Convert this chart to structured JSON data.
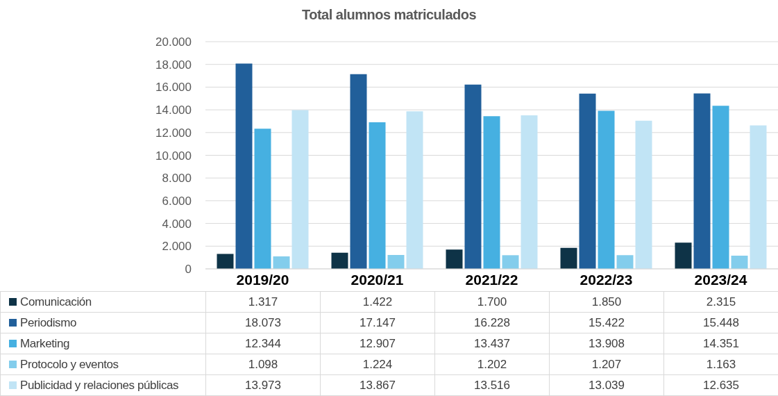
{
  "chart_data": {
    "type": "bar",
    "title": "Total alumnos matriculados",
    "categories": [
      "2019/20",
      "2020/21",
      "2021/22",
      "2022/23",
      "2023/24"
    ],
    "series": [
      {
        "name": "Comunicación",
        "color": "#0e3347",
        "values": [
          1317,
          1422,
          1700,
          1850,
          2315
        ],
        "value_labels": [
          "1.317",
          "1.422",
          "1.700",
          "1.850",
          "2.315"
        ]
      },
      {
        "name": "Periodismo",
        "color": "#215f9a",
        "values": [
          18073,
          17147,
          16228,
          15422,
          15448
        ],
        "value_labels": [
          "18.073",
          "17.147",
          "16.228",
          "15.422",
          "15.448"
        ]
      },
      {
        "name": "Marketing",
        "color": "#46b0e1",
        "values": [
          12344,
          12907,
          13437,
          13908,
          14351
        ],
        "value_labels": [
          "12.344",
          "12.907",
          "13.437",
          "13.908",
          "14.351"
        ]
      },
      {
        "name": "Protocolo y eventos",
        "color": "#83cdec",
        "values": [
          1098,
          1224,
          1202,
          1207,
          1163
        ],
        "value_labels": [
          "1.098",
          "1.224",
          "1.202",
          "1.207",
          "1.163"
        ]
      },
      {
        "name": "Publicidad y relaciones públicas",
        "color": "#c1e4f5",
        "values": [
          13973,
          13867,
          13516,
          13039,
          12635
        ],
        "value_labels": [
          "13.973",
          "13.867",
          "13.516",
          "13.039",
          "12.635"
        ]
      }
    ],
    "ylim": [
      0,
      20000
    ],
    "yticks": [
      0,
      {
        "value": 2000,
        "label": "2.000"
      },
      {
        "value": 4000,
        "label": "4.000"
      },
      {
        "value": 6000,
        "label": "6.000"
      },
      {
        "value": 8000,
        "label": "8.000"
      },
      {
        "value": 10000,
        "label": "10.000"
      },
      {
        "value": 12000,
        "label": "12.000"
      },
      {
        "value": 14000,
        "label": "14.000"
      },
      {
        "value": 16000,
        "label": "16.000"
      },
      {
        "value": 18000,
        "label": "18.000"
      },
      {
        "value": 20000,
        "label": "20.000"
      }
    ],
    "grid": "y",
    "legend": "bottom"
  }
}
